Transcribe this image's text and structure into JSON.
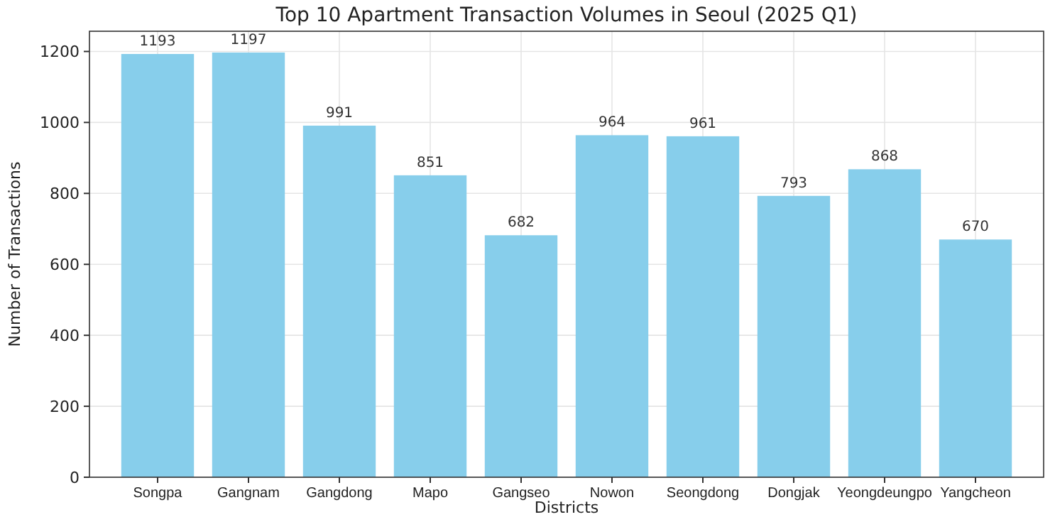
{
  "chart_data": {
    "type": "bar",
    "title": "Top 10 Apartment Transaction Volumes in Seoul (2025 Q1)",
    "xlabel": "Districts",
    "ylabel": "Number of Transactions",
    "categories": [
      "Songpa",
      "Gangnam",
      "Gangdong",
      "Mapo",
      "Gangseo",
      "Nowon",
      "Seongdong",
      "Dongjak",
      "Yeongdeungpo",
      "Yangcheon"
    ],
    "values": [
      1193,
      1197,
      991,
      851,
      682,
      964,
      961,
      793,
      868,
      670
    ],
    "color": "#87ceeb",
    "ylim": [
      0,
      1257
    ],
    "yticks": [
      0,
      200,
      400,
      600,
      800,
      1000,
      1200
    ],
    "grid": true,
    "data_labels": true
  }
}
